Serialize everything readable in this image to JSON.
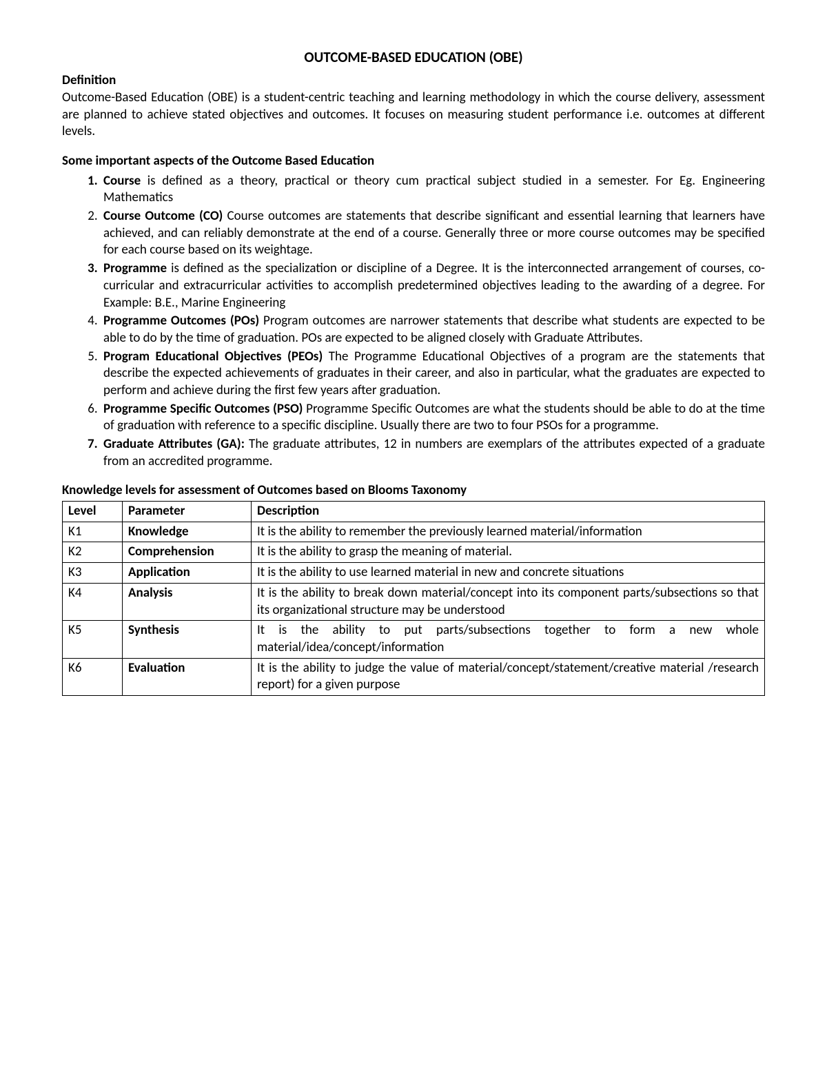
{
  "title": "OUTCOME-BASED EDUCATION (OBE)",
  "definition": {
    "heading": "Definition",
    "text": "Outcome-Based Education (OBE) is a student-centric teaching and learning methodology in which the course delivery, assessment are planned to achieve stated objectives and outcomes. It focuses on measuring student performance i.e. outcomes at different levels."
  },
  "aspects": {
    "heading": "Some important aspects of the Outcome Based Education",
    "items": [
      {
        "bold_marker": true,
        "term": "Course",
        "text": " is defined as a theory, practical or theory cum practical subject studied in a semester. For Eg. Engineering Mathematics"
      },
      {
        "bold_marker": false,
        "term": "Course Outcome (CO)",
        "text": " Course outcomes are statements that describe significant and essential learning that learners have achieved, and can reliably demonstrate at the end of a course. Generally three or more course outcomes may be specified for each course based on its weightage."
      },
      {
        "bold_marker": true,
        "term": "Programme",
        "text": " is defined as the specialization or discipline of a Degree. It is the interconnected arrangement of courses, co-curricular and extracurricular activities to accomplish predetermined objectives leading to the awarding of a degree. For Example: B.E., Marine Engineering"
      },
      {
        "bold_marker": false,
        "term": "Programme Outcomes (POs)",
        "text": " Program outcomes are narrower statements that describe what students are expected to be able to do by the time of graduation. POs are expected to be aligned closely with Graduate Attributes."
      },
      {
        "bold_marker": false,
        "term": "Program Educational Objectives (PEOs)",
        "text": " The Programme Educational Objectives of a program are the statements that describe the expected achievements of graduates in their career, and also in particular, what the graduates are expected to perform and achieve during the first few years after graduation."
      },
      {
        "bold_marker": false,
        "term": "Programme Specific Outcomes (PSO)",
        "text": " Programme Specific Outcomes are what the students should be able to do at the time of graduation with reference to a specific discipline. Usually there are two to four PSOs for a programme."
      },
      {
        "bold_marker": true,
        "term": "Graduate Attributes (GA):",
        "text": " The graduate attributes, 12 in numbers are exemplars of the attributes expected of a graduate from an accredited programme."
      }
    ]
  },
  "table": {
    "heading": "Knowledge levels for assessment of Outcomes based on Blooms Taxonomy",
    "columns": [
      "Level",
      "Parameter",
      "Description"
    ],
    "rows": [
      {
        "level": "K1",
        "param": "Knowledge",
        "desc": "It is the ability to remember the previously learned material/information"
      },
      {
        "level": "K2",
        "param": "Comprehension",
        "desc": "It is the ability to grasp the meaning of material."
      },
      {
        "level": "K3",
        "param": "Application",
        "desc": "It is the ability to use learned material in new and concrete situations"
      },
      {
        "level": "K4",
        "param": "Analysis",
        "desc": "It is the ability to break down material/concept into its component parts/subsections so that its organizational structure may be understood"
      },
      {
        "level": "K5",
        "param": "Synthesis",
        "desc": "It is the ability to put parts/subsections together to form a new whole material/idea/concept/information"
      },
      {
        "level": "K6",
        "param": "Evaluation",
        "desc": "It is the ability to judge the value of material/concept/statement/creative material /research report) for a given purpose"
      }
    ]
  }
}
